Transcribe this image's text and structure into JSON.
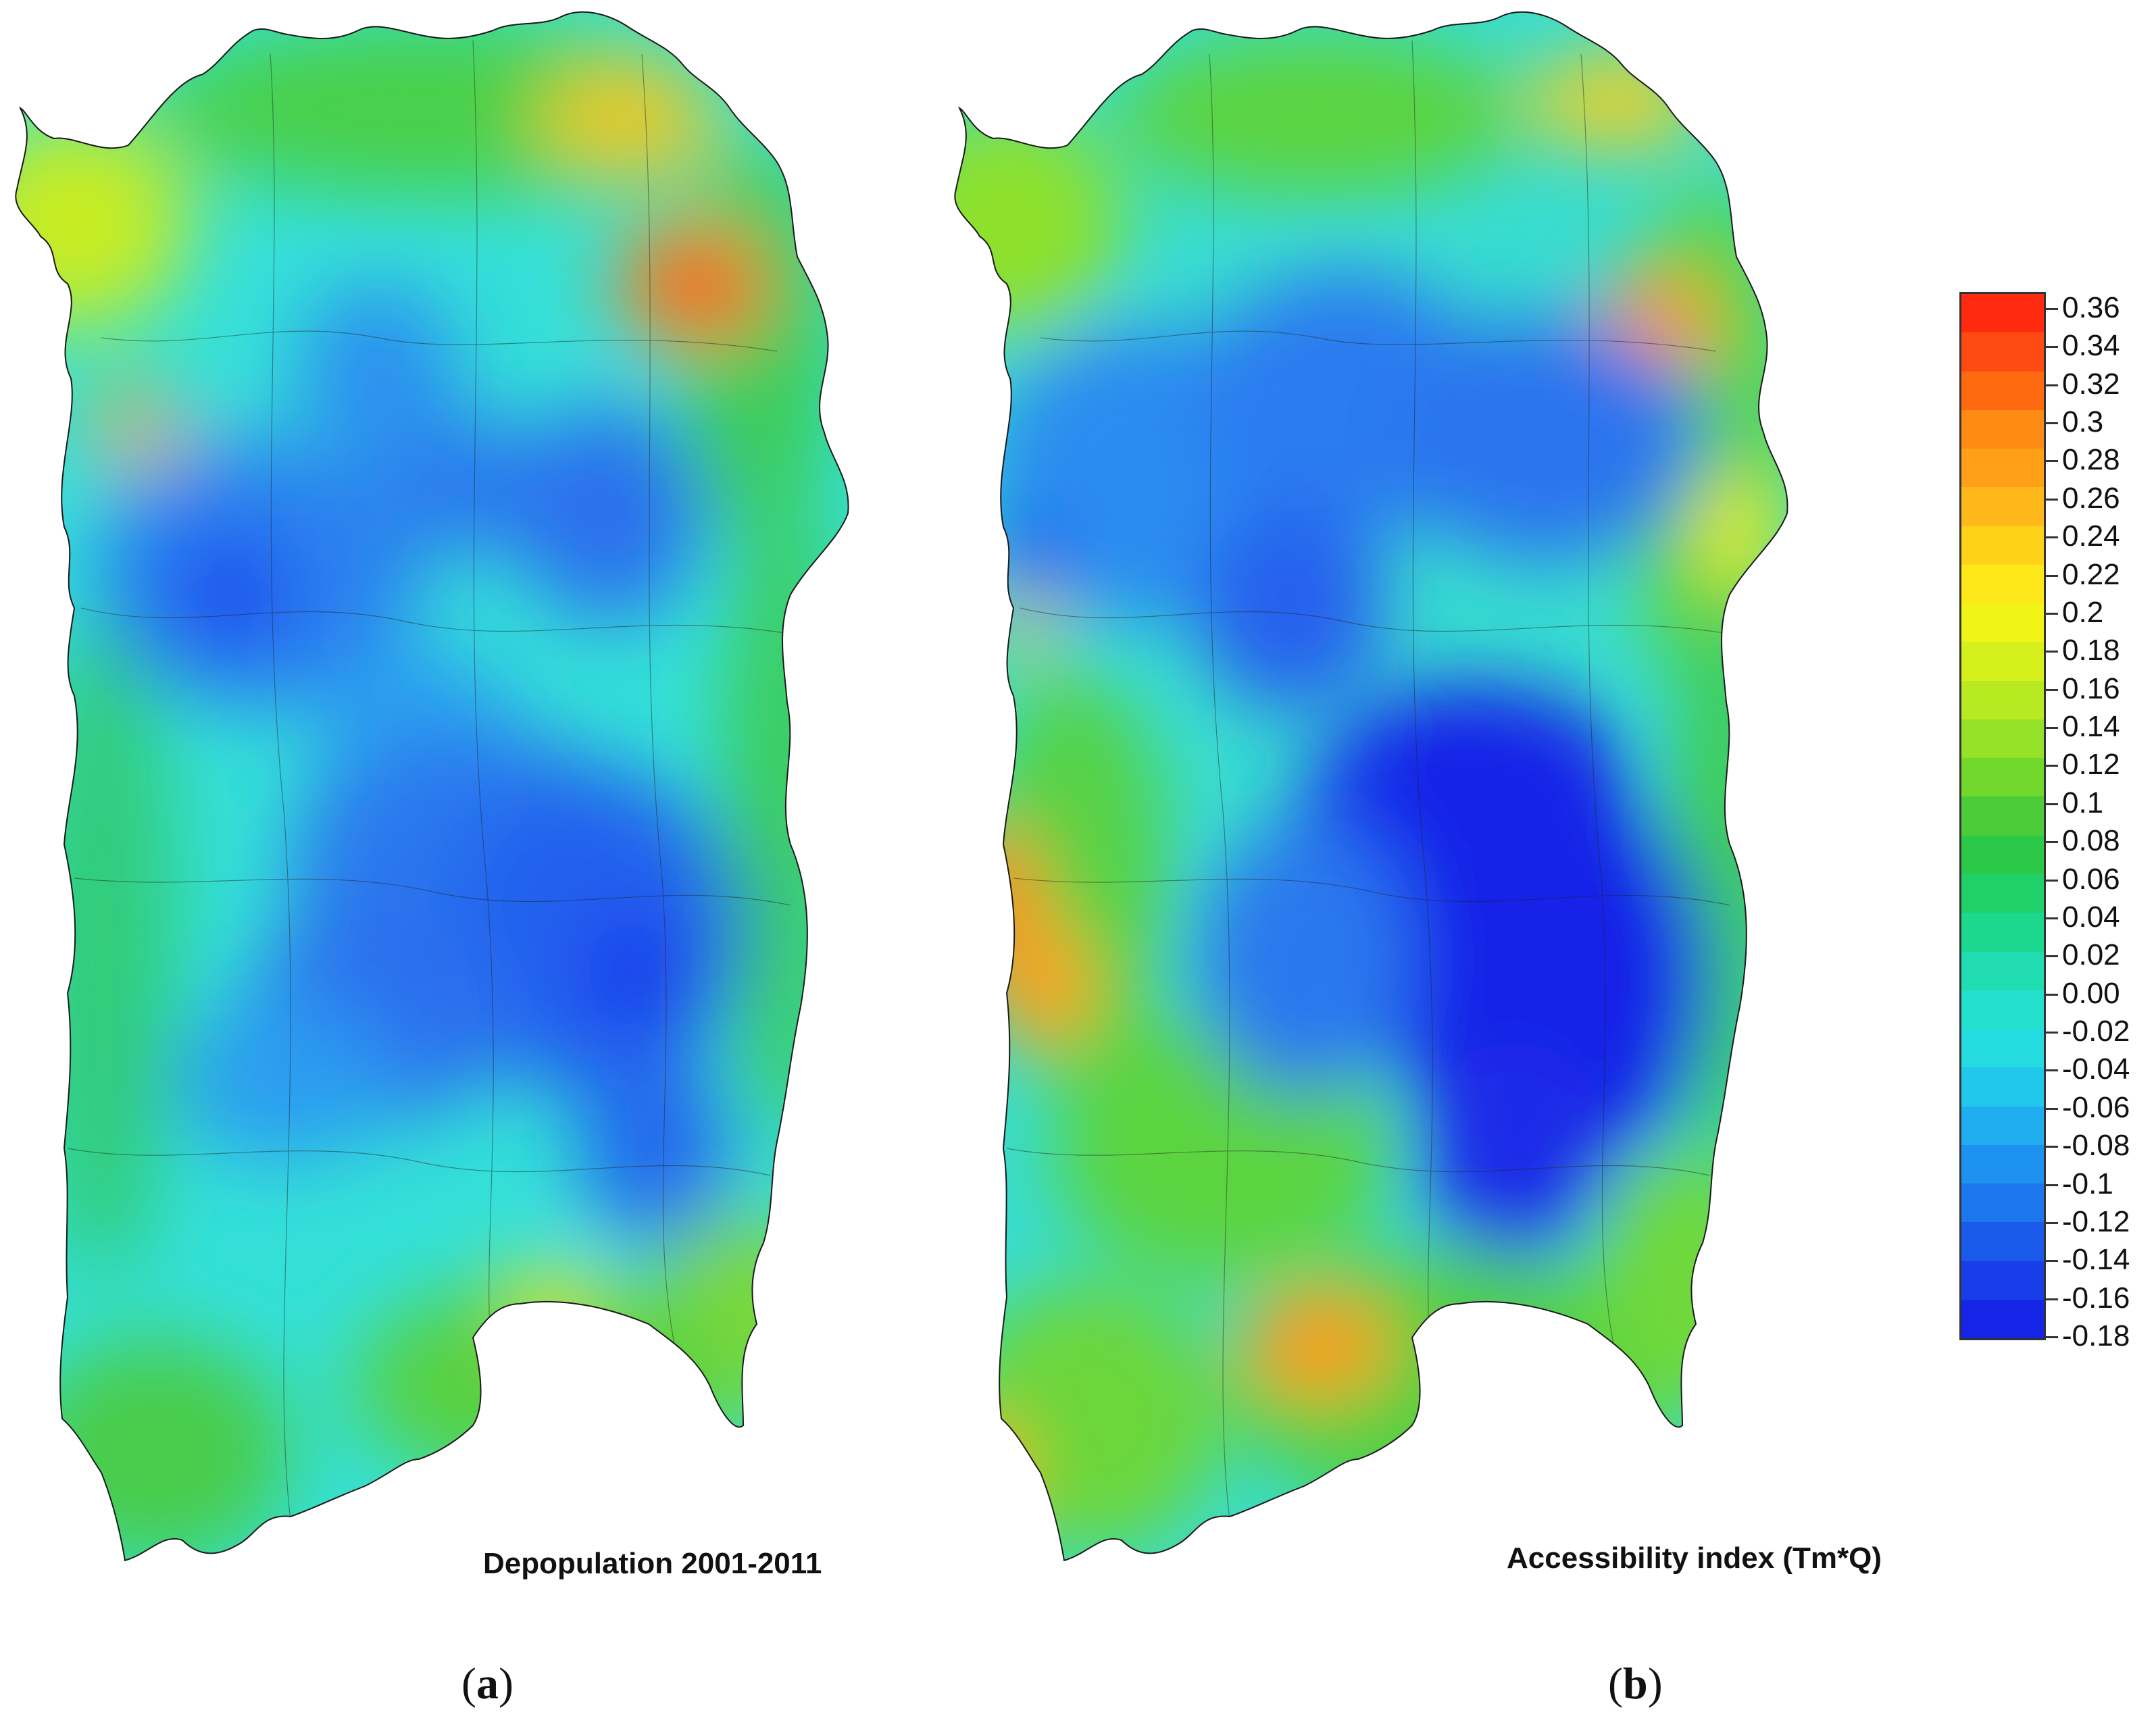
{
  "panels": [
    {
      "id": "a",
      "map_title": "Depopulation 2001-2011",
      "panel_label": "a"
    },
    {
      "id": "b",
      "map_title": "Accessibility index (Tm*Q)",
      "panel_label": "b"
    }
  ],
  "legend": {
    "labels": [
      "0.36",
      "0.34",
      "0.32",
      "0.3",
      "0.28",
      "0.26",
      "0.24",
      "0.22",
      "0.2",
      "0.18",
      "0.16",
      "0.14",
      "0.12",
      "0.1",
      "0.08",
      "0.06",
      "0.04",
      "0.02",
      "0.00",
      "-0.02",
      "-0.04",
      "-0.06",
      "-0.08",
      "-0.1",
      "-0.12",
      "-0.14",
      "-0.16",
      "-0.18"
    ],
    "colors": [
      "#ff2a10",
      "#ff4a12",
      "#ff6a10",
      "#ff8a14",
      "#ffa018",
      "#ffb81a",
      "#ffd21a",
      "#ffe81a",
      "#f2f418",
      "#d6f01c",
      "#b8ea22",
      "#96e22a",
      "#72d82c",
      "#4ccc38",
      "#2cc848",
      "#20d068",
      "#1cd88e",
      "#20dcb0",
      "#22e0cc",
      "#24dce0",
      "#22c8ec",
      "#20aef0",
      "#1e92f0",
      "#1c76ec",
      "#1a5aea",
      "#183eea",
      "#1624e8"
    ]
  },
  "map_colors": {
    "blue_dark": "#1a3cff",
    "blue": "#2a7cf0",
    "cyan": "#30d8ea",
    "green": "#30d060",
    "yellow": "#f0f020",
    "orange": "#ff9a18",
    "red": "#ff3010"
  }
}
